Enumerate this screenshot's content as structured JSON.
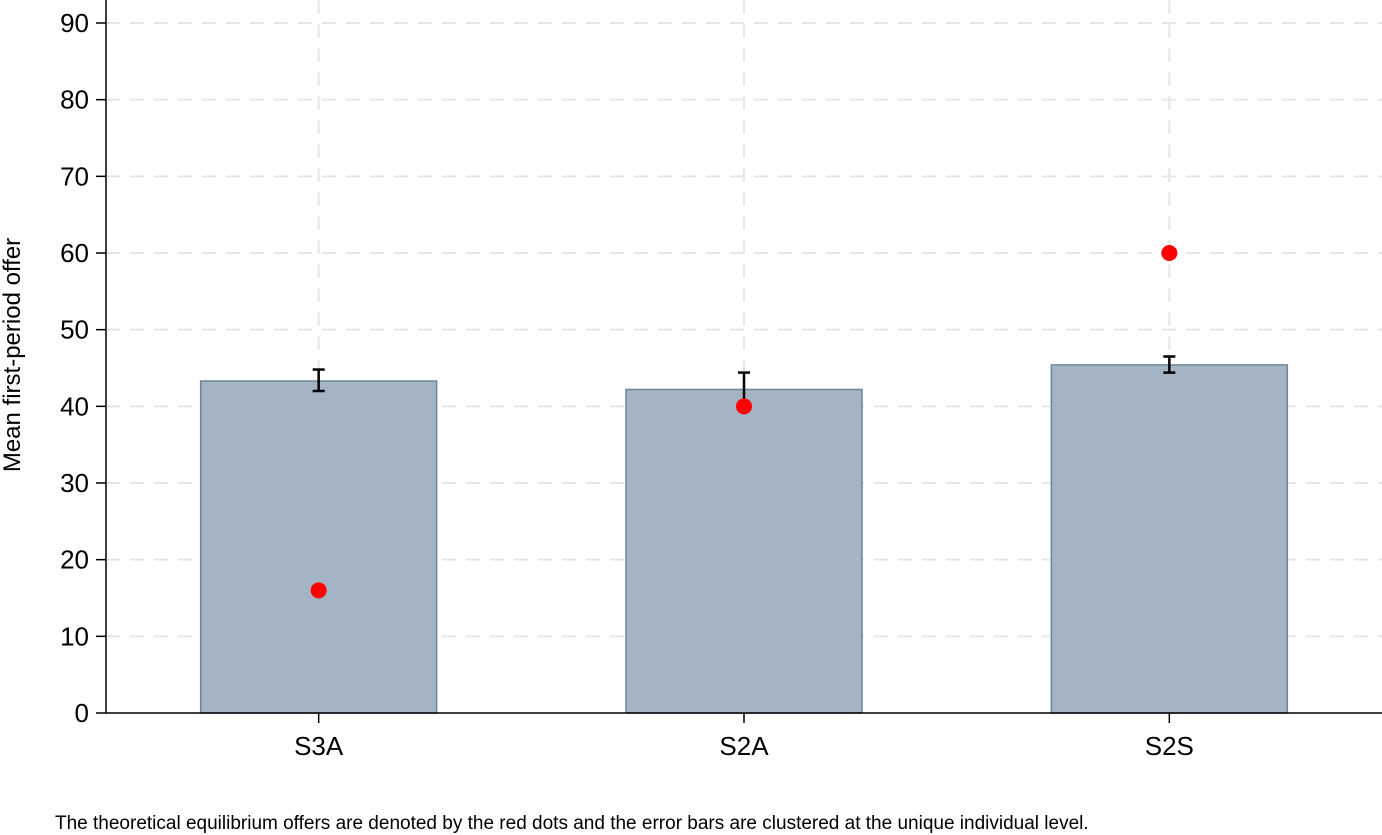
{
  "chart_data": {
    "type": "bar",
    "categories": [
      "S3A",
      "S2A",
      "S2S"
    ],
    "series": [
      {
        "values": [
          43.3,
          42.2,
          45.4
        ]
      }
    ],
    "error_bars": [
      {
        "low": 42.0,
        "high": 44.8
      },
      {
        "low": 40.0,
        "high": 44.4
      },
      {
        "low": 44.4,
        "high": 46.5
      }
    ],
    "equilibrium_points": [
      16,
      40,
      60
    ],
    "ylabel": "Mean first-period offer",
    "xlabel": "",
    "ylim": [
      0,
      93
    ],
    "yticks": [
      0,
      10,
      20,
      30,
      40,
      50,
      60,
      70,
      80,
      90
    ],
    "grid": true,
    "colors": {
      "bar_fill": "#a4b4c4",
      "bar_stroke": "#6d8599",
      "point": "#ff0000",
      "grid": "#e6e6e6"
    },
    "note": "The theoretical equilibrium offers are denoted by the red dots and the error bars are clustered at the unique individual level."
  }
}
